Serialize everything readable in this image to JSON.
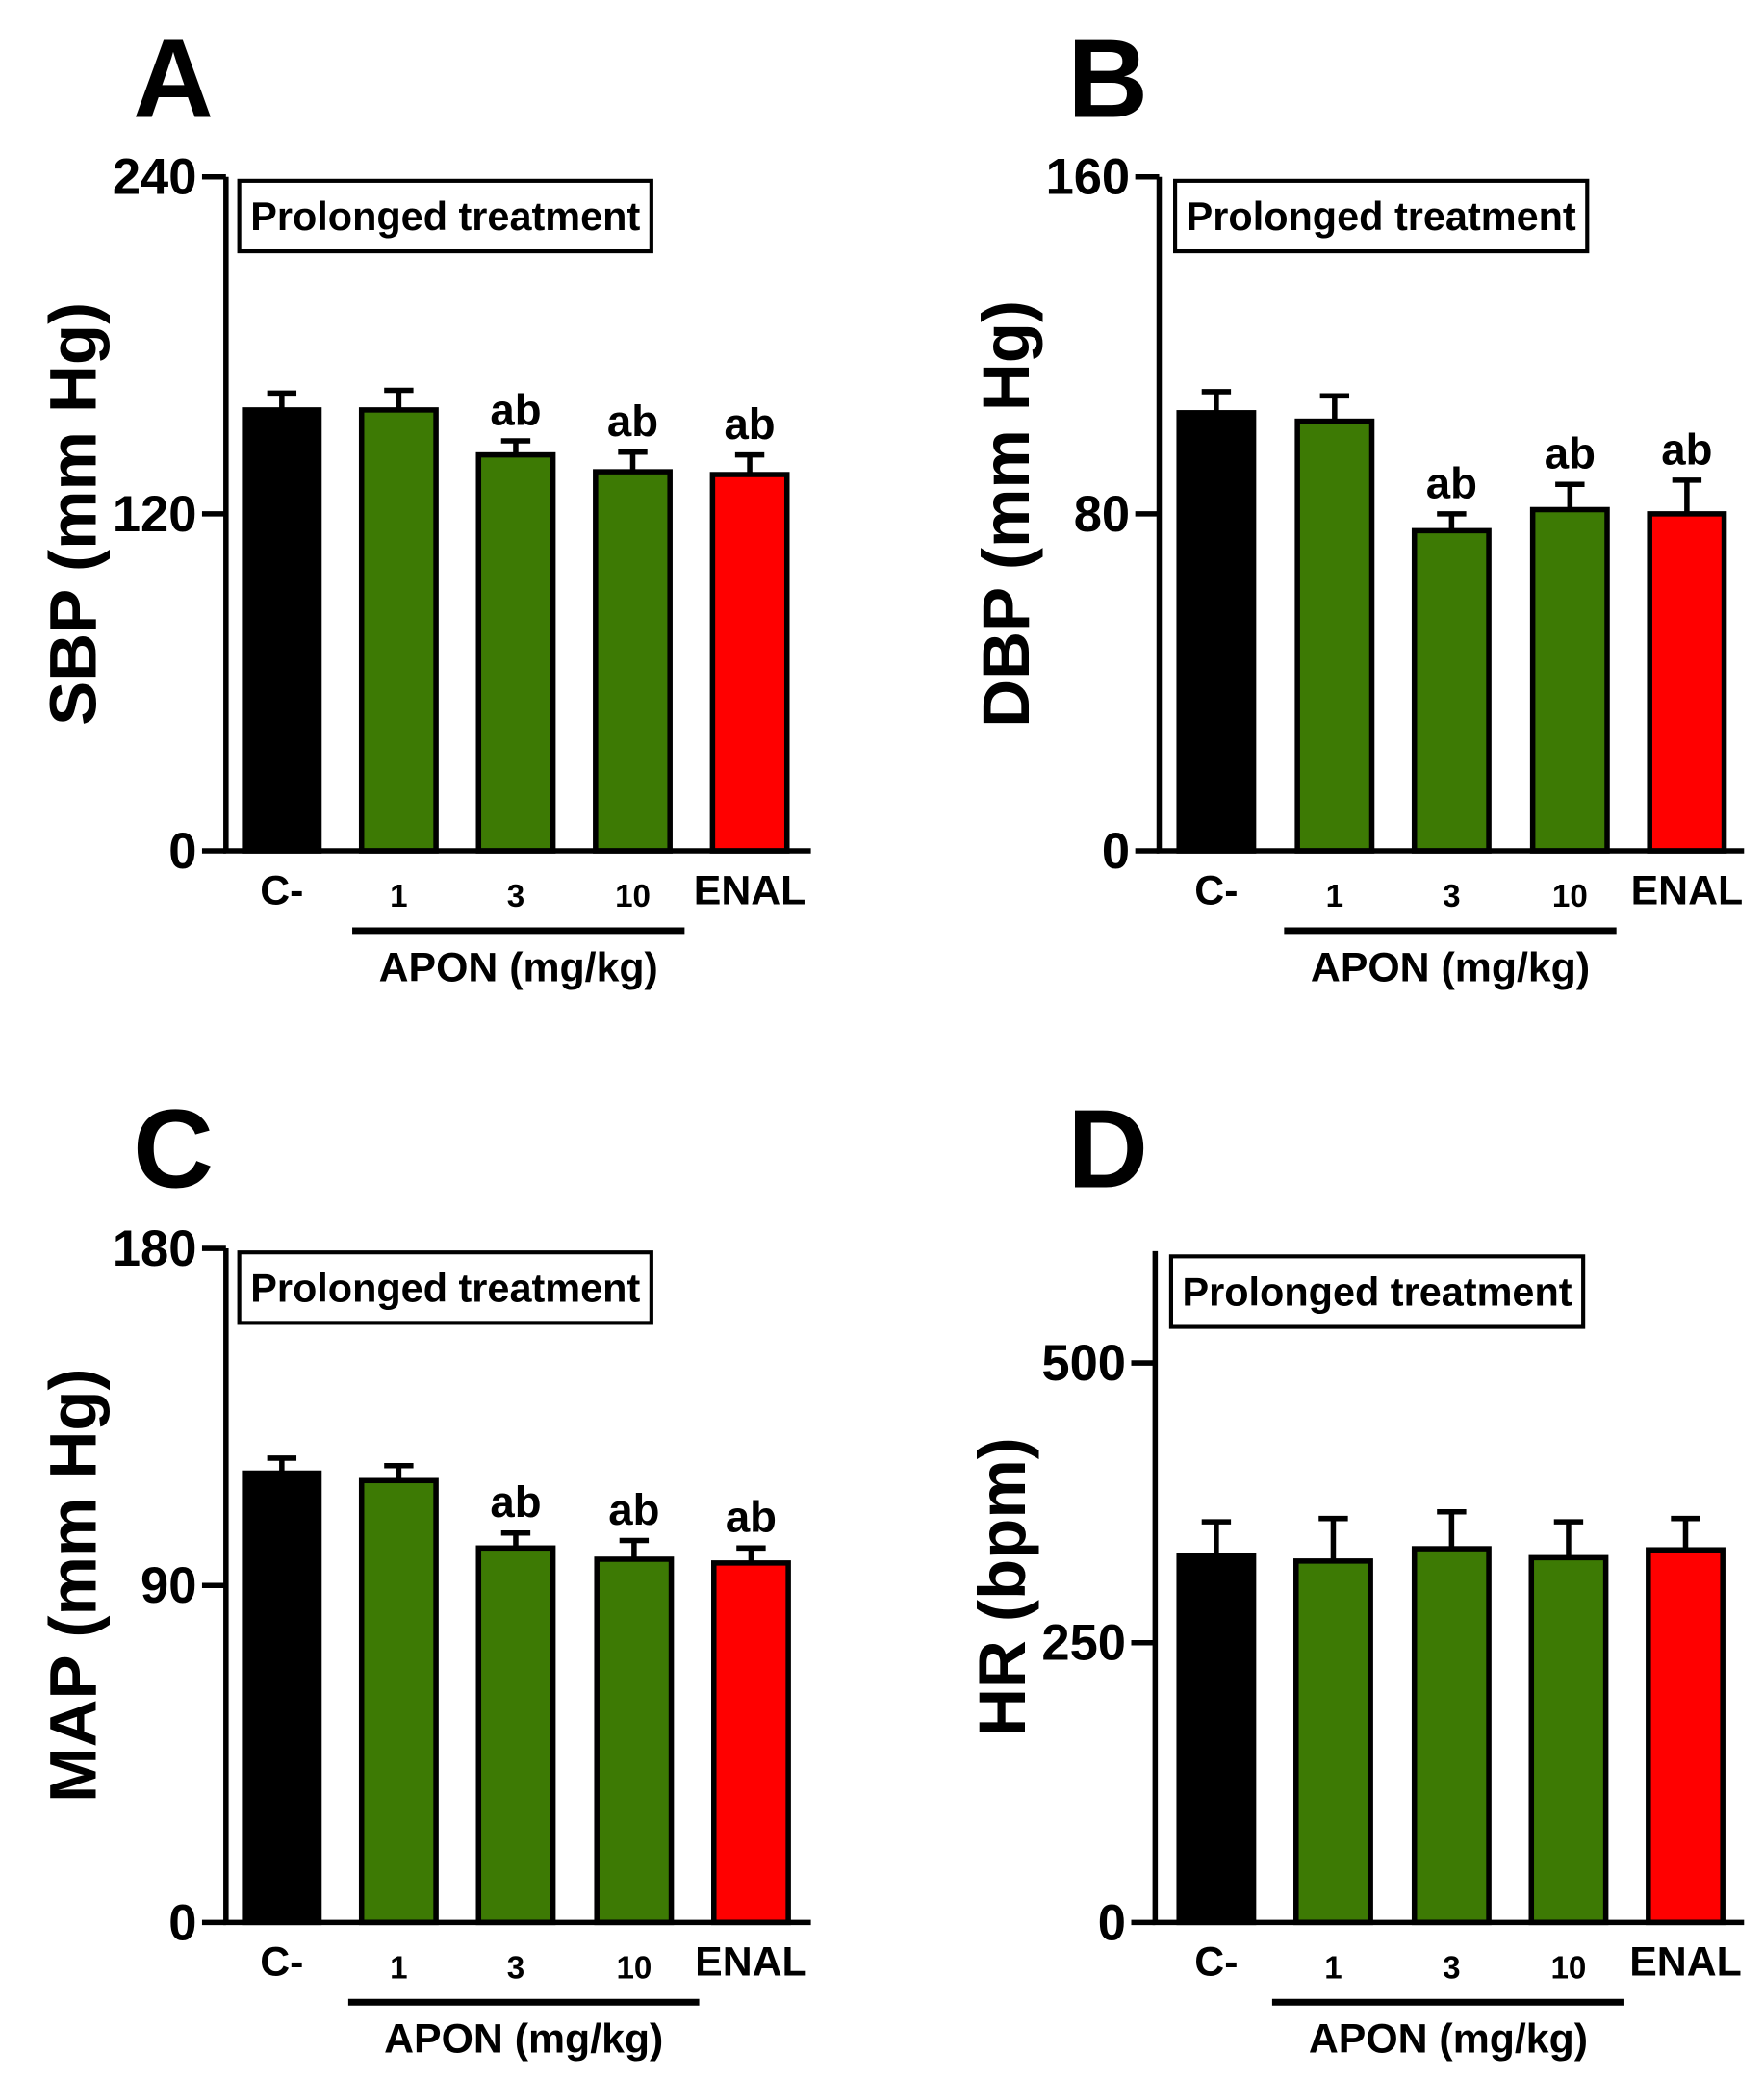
{
  "figure": {
    "group_label": "APON (mg/kg)",
    "colors": {
      "control": "#000000",
      "apon": "#3d7a04",
      "enal": "#ff0000",
      "axis": "#000000"
    }
  },
  "chart_data": [
    {
      "panel": "A",
      "type": "bar",
      "title": "Prolonged treatment",
      "ylabel": "SBP (mm Hg)",
      "xlabel": "APON (mg/kg)",
      "categories": [
        "C-",
        "1",
        "3",
        "10",
        "ENAL"
      ],
      "values": [
        157,
        157,
        141,
        135,
        134
      ],
      "errors": [
        6,
        7,
        5,
        7,
        7
      ],
      "annotations": [
        "",
        "",
        "ab",
        "ab",
        "ab"
      ],
      "ylim": [
        0,
        240
      ],
      "yticks": [
        0,
        120,
        240
      ],
      "grid": false
    },
    {
      "panel": "B",
      "type": "bar",
      "title": "Prolonged treatment",
      "ylabel": "DBP (mm Hg)",
      "xlabel": "APON (mg/kg)",
      "categories": [
        "C-",
        "1",
        "3",
        "10",
        "ENAL"
      ],
      "values": [
        104,
        102,
        76,
        81,
        80
      ],
      "errors": [
        5,
        6,
        4,
        6,
        8
      ],
      "annotations": [
        "",
        "",
        "ab",
        "ab",
        "ab"
      ],
      "ylim": [
        0,
        160
      ],
      "yticks": [
        0,
        80,
        160
      ],
      "grid": false
    },
    {
      "panel": "C",
      "type": "bar",
      "title": "Prolonged treatment",
      "ylabel": "MAP (mm Hg)",
      "xlabel": "APON (mg/kg)",
      "categories": [
        "C-",
        "1",
        "3",
        "10",
        "ENAL"
      ],
      "values": [
        120,
        118,
        100,
        97,
        96
      ],
      "errors": [
        4,
        4,
        4,
        5,
        4
      ],
      "annotations": [
        "",
        "",
        "ab",
        "ab",
        "ab"
      ],
      "ylim": [
        0,
        180
      ],
      "yticks": [
        0,
        90,
        180
      ],
      "grid": false
    },
    {
      "panel": "D",
      "type": "bar",
      "title": "Prolonged treatment",
      "ylabel": "HR (bpm)",
      "xlabel": "APON (mg/kg)",
      "categories": [
        "C-",
        "1",
        "3",
        "10",
        "ENAL"
      ],
      "values": [
        328,
        323,
        334,
        326,
        333
      ],
      "errors": [
        30,
        38,
        33,
        32,
        28
      ],
      "annotations": [
        "",
        "",
        "",
        "",
        ""
      ],
      "ylim": [
        0,
        600
      ],
      "yticks": [
        0,
        250,
        500
      ],
      "grid": false
    }
  ]
}
